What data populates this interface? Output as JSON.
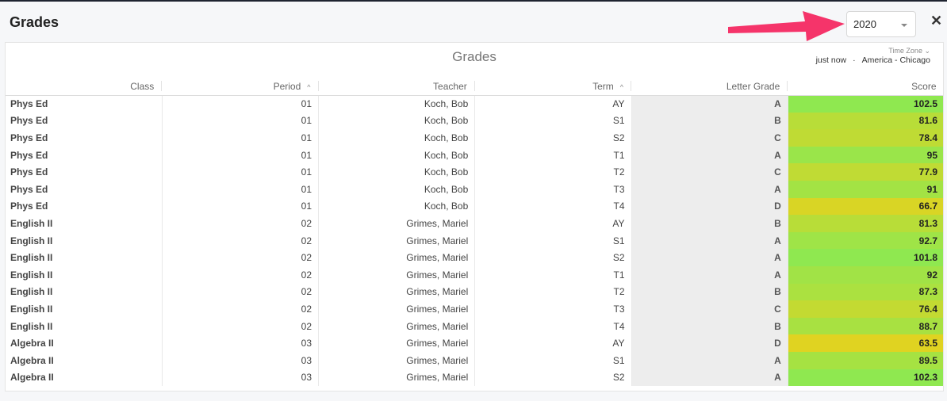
{
  "header": {
    "title": "Grades",
    "year_select": "2020",
    "close_label": "✕"
  },
  "arrow_color": "#f5346a",
  "panel": {
    "title": "Grades",
    "time_zone_label": "Time Zone ⌄",
    "updated": "just now",
    "separator": "·",
    "time_zone": "America - Chicago"
  },
  "columns": [
    {
      "label": "Class"
    },
    {
      "label": "Period",
      "sort": "^"
    },
    {
      "label": "Teacher"
    },
    {
      "label": "Term",
      "sort": "^"
    },
    {
      "label": "Letter Grade"
    },
    {
      "label": "Score"
    }
  ],
  "rows": [
    [
      "Phys Ed",
      "01",
      "Koch, Bob",
      "AY",
      "A",
      "102.5"
    ],
    [
      "Phys Ed",
      "01",
      "Koch, Bob",
      "S1",
      "B",
      "81.6"
    ],
    [
      "Phys Ed",
      "01",
      "Koch, Bob",
      "S2",
      "C",
      "78.4"
    ],
    [
      "Phys Ed",
      "01",
      "Koch, Bob",
      "T1",
      "A",
      "95"
    ],
    [
      "Phys Ed",
      "01",
      "Koch, Bob",
      "T2",
      "C",
      "77.9"
    ],
    [
      "Phys Ed",
      "01",
      "Koch, Bob",
      "T3",
      "A",
      "91"
    ],
    [
      "Phys Ed",
      "01",
      "Koch, Bob",
      "T4",
      "D",
      "66.7"
    ],
    [
      "English II",
      "02",
      "Grimes, Mariel",
      "AY",
      "B",
      "81.3"
    ],
    [
      "English II",
      "02",
      "Grimes, Mariel",
      "S1",
      "A",
      "92.7"
    ],
    [
      "English II",
      "02",
      "Grimes, Mariel",
      "S2",
      "A",
      "101.8"
    ],
    [
      "English II",
      "02",
      "Grimes, Mariel",
      "T1",
      "A",
      "92"
    ],
    [
      "English II",
      "02",
      "Grimes, Mariel",
      "T2",
      "B",
      "87.3"
    ],
    [
      "English II",
      "02",
      "Grimes, Mariel",
      "T3",
      "C",
      "76.4"
    ],
    [
      "English II",
      "02",
      "Grimes, Mariel",
      "T4",
      "B",
      "88.7"
    ],
    [
      "Algebra II",
      "03",
      "Grimes, Mariel",
      "AY",
      "D",
      "63.5"
    ],
    [
      "Algebra II",
      "03",
      "Grimes, Mariel",
      "S1",
      "A",
      "89.5"
    ],
    [
      "Algebra II",
      "03",
      "Grimes, Mariel",
      "S2",
      "A",
      "102.3"
    ]
  ],
  "score_colors": {
    "low": "#e3d21f",
    "high": "#8fe850"
  }
}
